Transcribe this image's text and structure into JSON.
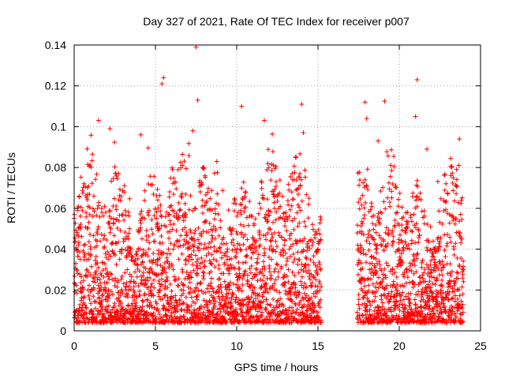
{
  "chart_data": {
    "type": "scatter",
    "title": "Day 327 of 2021, Rate Of TEC Index for receiver p007",
    "xlabel": "GPS time / hours",
    "ylabel": "ROTI / TECUs",
    "xlim": [
      0,
      25
    ],
    "ylim": [
      0,
      0.14
    ],
    "xticks": [
      0,
      5,
      10,
      15,
      20,
      25
    ],
    "xtick_labels": [
      "0",
      "5",
      "10",
      "15",
      "20",
      "25"
    ],
    "yticks": [
      0,
      0.02,
      0.04,
      0.06,
      0.08,
      0.1,
      0.12,
      0.14
    ],
    "ytick_labels": [
      "0",
      "0.02",
      "0.04",
      "0.06",
      "0.08",
      "0.1",
      "0.12",
      "0.14"
    ],
    "grid": true,
    "marker": "+",
    "series_color": "#ff0000",
    "data_gaps_hours": [
      [
        15.2,
        17.4
      ]
    ],
    "series": [
      {
        "name": "ROTI",
        "notable_points": [
          {
            "x": 0.2,
            "y": 0.06
          },
          {
            "x": 1.5,
            "y": 0.103
          },
          {
            "x": 2.2,
            "y": 0.099
          },
          {
            "x": 4.1,
            "y": 0.096
          },
          {
            "x": 5.5,
            "y": 0.124
          },
          {
            "x": 5.4,
            "y": 0.121
          },
          {
            "x": 7.5,
            "y": 0.139
          },
          {
            "x": 7.6,
            "y": 0.113
          },
          {
            "x": 7.3,
            "y": 0.098
          },
          {
            "x": 10.3,
            "y": 0.11
          },
          {
            "x": 11.7,
            "y": 0.103
          },
          {
            "x": 14.0,
            "y": 0.111
          },
          {
            "x": 14.1,
            "y": 0.097
          },
          {
            "x": 17.9,
            "y": 0.112
          },
          {
            "x": 18.0,
            "y": 0.104
          },
          {
            "x": 18.7,
            "y": 0.093
          },
          {
            "x": 21.1,
            "y": 0.123
          },
          {
            "x": 21.0,
            "y": 0.105
          },
          {
            "x": 21.7,
            "y": 0.089
          },
          {
            "x": 23.7,
            "y": 0.094
          }
        ]
      }
    ]
  }
}
